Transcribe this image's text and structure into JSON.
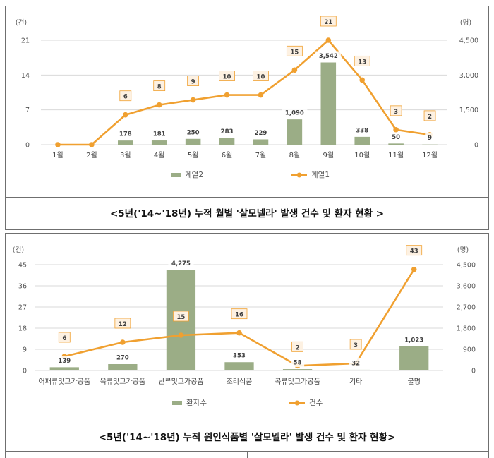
{
  "chart_data": [
    {
      "type": "bar+line",
      "left_axis_unit": "(건)",
      "right_axis_unit": "(명)",
      "categories": [
        "1월",
        "2월",
        "3월",
        "4월",
        "5월",
        "6월",
        "7월",
        "8월",
        "9월",
        "10월",
        "11월",
        "12월"
      ],
      "left_ticks": [
        "0",
        "7",
        "14",
        "21"
      ],
      "right_ticks": [
        "0",
        "1,500",
        "3,000",
        "4,500"
      ],
      "left_range": [
        0,
        21
      ],
      "right_range": [
        0,
        4500
      ],
      "series": [
        {
          "name": "계열2",
          "kind": "bar",
          "axis": "right",
          "color": "#9bad86",
          "values": [
            null,
            null,
            178,
            181,
            250,
            283,
            229,
            1090,
            3542,
            338,
            50,
            9
          ],
          "labels": [
            "",
            "",
            "178",
            "181",
            "250",
            "283",
            "229",
            "1,090",
            "3,542",
            "338",
            "50",
            "9"
          ]
        },
        {
          "name": "계열1",
          "kind": "line",
          "axis": "left",
          "color": "#f0a030",
          "values": [
            0,
            0,
            6,
            8,
            9,
            10,
            10,
            15,
            21,
            13,
            3,
            2
          ],
          "labels": [
            "",
            "",
            "6",
            "8",
            "9",
            "10",
            "10",
            "15",
            "21",
            "13",
            "3",
            "2"
          ]
        }
      ],
      "caption": "<5년('14~'18년) 누적 월별 '살모넬라' 발생 건수 및 환자 현황 >"
    },
    {
      "type": "bar+line",
      "left_axis_unit": "(건)",
      "right_axis_unit": "(명)",
      "categories": [
        "어패류및그가공품",
        "육류및그가공품",
        "난류및그가공품",
        "조리식품",
        "곡류및그가공품",
        "기타",
        "불명"
      ],
      "left_ticks": [
        "0",
        "9",
        "18",
        "27",
        "36",
        "45"
      ],
      "right_ticks": [
        "0",
        "900",
        "1,800",
        "2,700",
        "3,600",
        "4,500"
      ],
      "left_range": [
        0,
        45
      ],
      "right_range": [
        0,
        4500
      ],
      "series": [
        {
          "name": "환자수",
          "kind": "bar",
          "axis": "right",
          "color": "#9bad86",
          "values": [
            139,
            270,
            4275,
            353,
            58,
            32,
            1023
          ],
          "labels": [
            "139",
            "270",
            "4,275",
            "353",
            "58",
            "32",
            "1,023"
          ]
        },
        {
          "name": "건수",
          "kind": "line",
          "axis": "left",
          "color": "#f0a030",
          "values": [
            6,
            12,
            15,
            16,
            2,
            3,
            43
          ],
          "labels": [
            "6",
            "12",
            "15",
            "16",
            "2",
            "3",
            "43"
          ]
        }
      ],
      "caption": "<5년('14~'18년) 누적 원인식품별 '살모넬라' 발생 건수 및 환자 현황>"
    }
  ]
}
